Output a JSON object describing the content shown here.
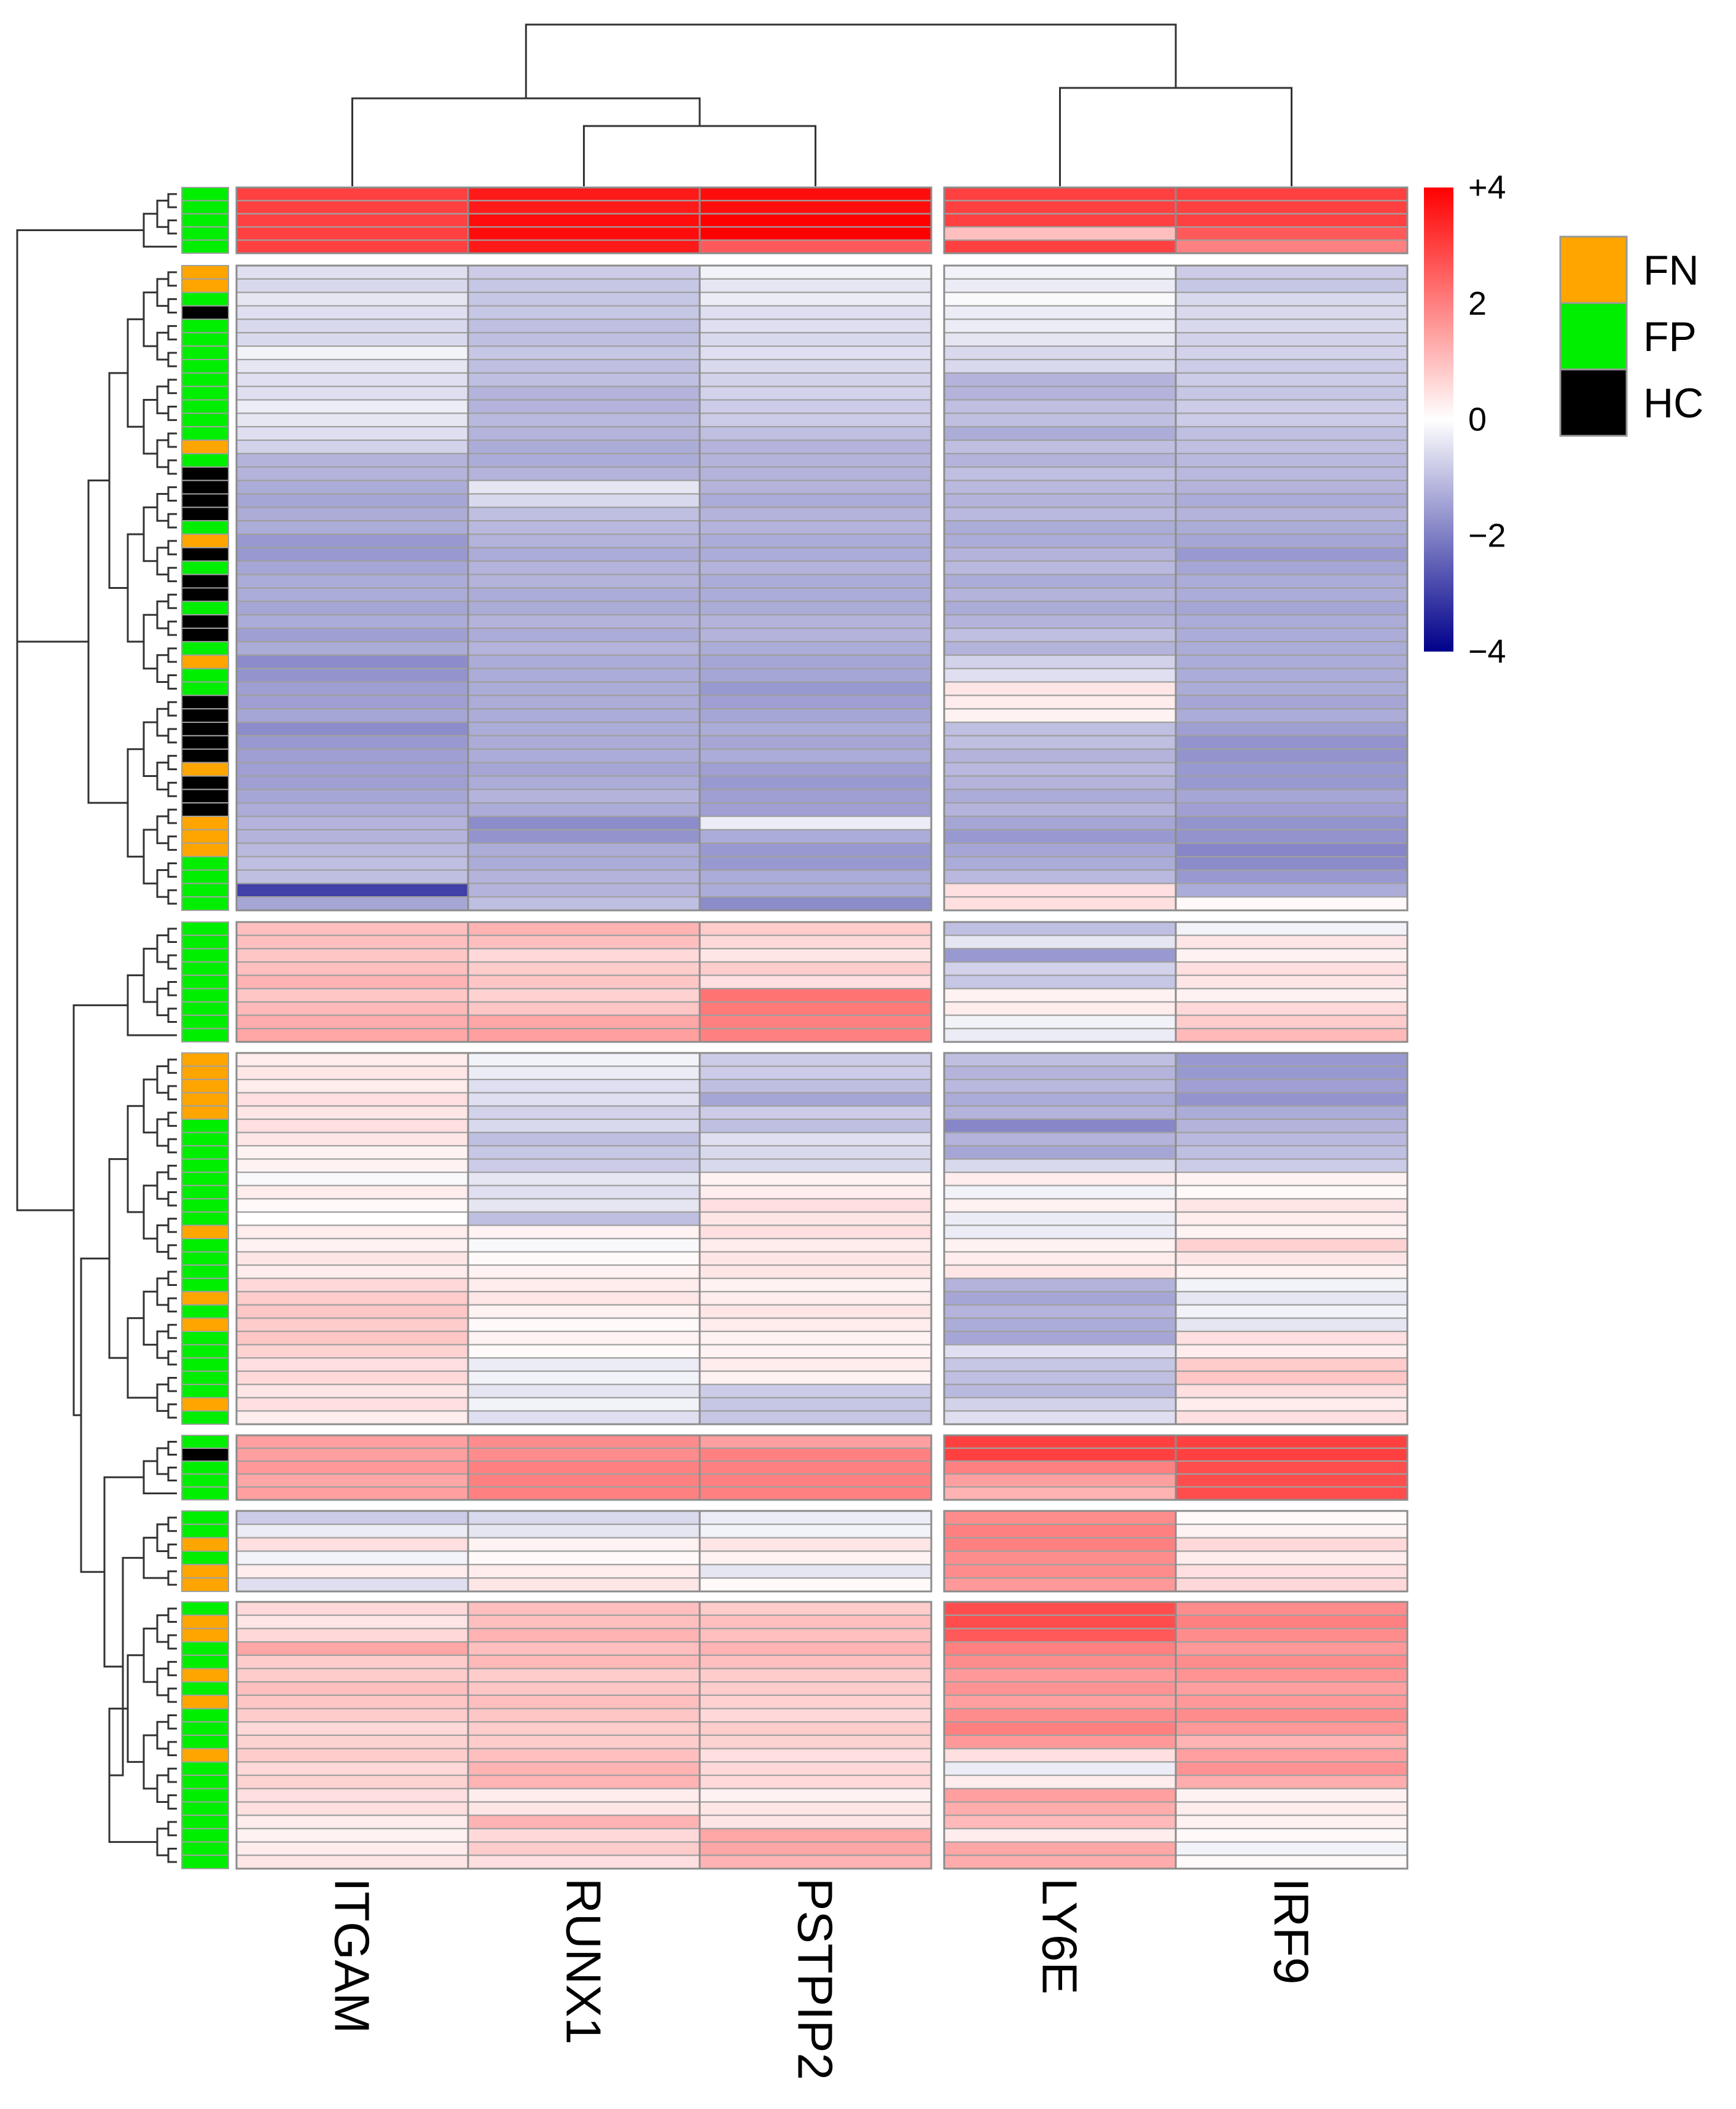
{
  "chart_data": {
    "type": "heatmap",
    "columns": [
      "ITGAM",
      "RUNX1",
      "PSTPIP2",
      "LY6E",
      "IRF9"
    ],
    "color_scale": {
      "min": -4,
      "max": 4,
      "low_color": "#00008b",
      "mid_color": "#ffffff",
      "high_color": "#ff0000",
      "ticks": [
        {
          "value": 4,
          "label": "+4"
        },
        {
          "value": 2,
          "label": "2"
        },
        {
          "value": 0,
          "label": "0"
        },
        {
          "value": -2,
          "label": "−2"
        },
        {
          "value": -4,
          "label": "−4"
        }
      ]
    },
    "legend": {
      "placement": "top-right",
      "items": [
        {
          "label": "FN",
          "color": "#ffa500"
        },
        {
          "label": "FP",
          "color": "#00ee00"
        },
        {
          "label": "HC",
          "color": "#000000"
        }
      ]
    },
    "row_dendrogram": true,
    "column_dendrogram": true,
    "row_groups": [
      {
        "annotations": [
          "FP",
          "FP",
          "FP",
          "FP",
          "FP"
        ],
        "values": [
          [
            3.0,
            3.6,
            3.8,
            3.0,
            3.0
          ],
          [
            3.0,
            3.6,
            3.8,
            3.0,
            3.0
          ],
          [
            3.0,
            3.8,
            4.0,
            3.0,
            3.0
          ],
          [
            3.0,
            3.8,
            4.0,
            1.0,
            2.6
          ],
          [
            3.0,
            3.6,
            2.6,
            3.0,
            2.0
          ]
        ]
      },
      {
        "annotations": [
          "FN",
          "FN",
          "FP",
          "HC",
          "FP",
          "FP",
          "FP",
          "FP",
          "FP",
          "FP",
          "FP",
          "FP",
          "FP",
          "FN",
          "FP",
          "HC",
          "HC",
          "HC",
          "HC",
          "FP",
          "FN",
          "HC",
          "FP",
          "HC",
          "HC",
          "FP",
          "HC",
          "HC",
          "FP",
          "FN",
          "FP",
          "FP",
          "HC",
          "HC",
          "HC",
          "HC",
          "HC",
          "FN",
          "HC",
          "HC",
          "HC",
          "FN",
          "FN",
          "FN",
          "FP",
          "FP",
          "FP",
          "FP"
        ],
        "values": [
          [
            -0.5,
            -0.8,
            -0.2,
            -0.2,
            -0.8
          ],
          [
            -0.6,
            -0.9,
            -0.4,
            -0.3,
            -0.9
          ],
          [
            -0.4,
            -0.9,
            -0.3,
            -0.1,
            -0.6
          ],
          [
            -0.5,
            -0.9,
            -0.5,
            -0.3,
            -0.6
          ],
          [
            -0.6,
            -1.0,
            -0.5,
            -0.3,
            -0.6
          ],
          [
            -0.6,
            -1.0,
            -0.6,
            -0.4,
            -0.7
          ],
          [
            -0.2,
            -0.9,
            -0.5,
            -0.6,
            -0.7
          ],
          [
            -0.4,
            -1.0,
            -0.6,
            -0.6,
            -0.8
          ],
          [
            -0.5,
            -1.0,
            -0.7,
            -1.2,
            -0.8
          ],
          [
            -0.5,
            -1.2,
            -0.7,
            -1.2,
            -0.9
          ],
          [
            -0.3,
            -1.2,
            -0.8,
            -1.0,
            -0.8
          ],
          [
            -0.4,
            -1.1,
            -0.8,
            -1.0,
            -0.8
          ],
          [
            -0.5,
            -1.2,
            -1.0,
            -1.3,
            -1.0
          ],
          [
            -0.7,
            -1.3,
            -1.2,
            -1.0,
            -1.0
          ],
          [
            -1.2,
            -1.3,
            -1.2,
            -1.2,
            -1.1
          ],
          [
            -1.2,
            -1.2,
            -1.2,
            -1.0,
            -1.1
          ],
          [
            -1.3,
            -0.4,
            -1.2,
            -1.1,
            -1.2
          ],
          [
            -1.4,
            -0.6,
            -1.3,
            -1.2,
            -1.3
          ],
          [
            -1.3,
            -1.0,
            -1.2,
            -1.1,
            -1.2
          ],
          [
            -1.3,
            -1.1,
            -1.2,
            -1.3,
            -1.3
          ],
          [
            -1.6,
            -1.2,
            -1.3,
            -1.3,
            -1.4
          ],
          [
            -1.6,
            -1.3,
            -1.3,
            -1.2,
            -1.6
          ],
          [
            -1.4,
            -1.2,
            -1.2,
            -1.1,
            -1.4
          ],
          [
            -1.3,
            -1.2,
            -1.3,
            -1.3,
            -1.3
          ],
          [
            -1.3,
            -1.3,
            -1.3,
            -1.2,
            -1.3
          ],
          [
            -1.4,
            -1.3,
            -1.3,
            -1.3,
            -1.4
          ],
          [
            -1.3,
            -1.2,
            -1.2,
            -1.2,
            -1.3
          ],
          [
            -1.5,
            -1.3,
            -1.2,
            -1.0,
            -1.3
          ],
          [
            -1.3,
            -1.2,
            -1.3,
            -1.2,
            -1.3
          ],
          [
            -1.8,
            -1.3,
            -1.4,
            -0.7,
            -1.3
          ],
          [
            -1.7,
            -1.3,
            -1.4,
            -0.5,
            -1.3
          ],
          [
            -1.5,
            -1.3,
            -1.6,
            0.4,
            -1.3
          ],
          [
            -1.5,
            -1.3,
            -1.5,
            0.3,
            -1.4
          ],
          [
            -1.4,
            -1.3,
            -1.4,
            0.2,
            -1.3
          ],
          [
            -1.8,
            -1.3,
            -1.3,
            -1.0,
            -1.5
          ],
          [
            -1.6,
            -1.3,
            -1.4,
            -1.0,
            -1.7
          ],
          [
            -1.5,
            -1.3,
            -1.3,
            -1.2,
            -1.7
          ],
          [
            -1.5,
            -1.4,
            -1.5,
            -1.1,
            -1.6
          ],
          [
            -1.5,
            -1.3,
            -1.6,
            -1.2,
            -1.6
          ],
          [
            -1.4,
            -1.2,
            -1.5,
            -1.3,
            -1.4
          ],
          [
            -1.3,
            -1.3,
            -1.5,
            -1.2,
            -1.5
          ],
          [
            -1.2,
            -1.8,
            -0.3,
            -1.4,
            -1.7
          ],
          [
            -1.2,
            -1.7,
            -1.3,
            -1.6,
            -1.7
          ],
          [
            -1.1,
            -1.3,
            -1.6,
            -1.4,
            -1.9
          ],
          [
            -1.0,
            -1.3,
            -1.6,
            -1.3,
            -1.8
          ],
          [
            -1.0,
            -1.2,
            -1.3,
            -1.1,
            -1.6
          ],
          [
            -3.0,
            -1.2,
            -1.3,
            0.5,
            -1.3
          ],
          [
            -1.4,
            -1.0,
            -1.8,
            0.5,
            0.1
          ]
        ]
      },
      {
        "annotations": [
          "FP",
          "FP",
          "FP",
          "FP",
          "FP",
          "FP",
          "FP",
          "FP",
          "FP"
        ],
        "values": [
          [
            1.0,
            1.2,
            0.8,
            -1.0,
            -0.2
          ],
          [
            1.0,
            1.0,
            0.6,
            -0.4,
            0.4
          ],
          [
            0.9,
            0.6,
            0.4,
            -1.6,
            0.2
          ],
          [
            1.0,
            0.8,
            0.8,
            -0.7,
            0.5
          ],
          [
            1.2,
            0.9,
            0.5,
            -0.9,
            0.4
          ],
          [
            0.9,
            0.7,
            2.2,
            0.2,
            0.2
          ],
          [
            1.1,
            0.9,
            2.1,
            0.3,
            0.6
          ],
          [
            1.3,
            1.4,
            2.0,
            -0.2,
            0.8
          ],
          [
            1.4,
            1.5,
            2.0,
            -0.3,
            1.1
          ]
        ]
      },
      {
        "annotations": [
          "FN",
          "FN",
          "FN",
          "FN",
          "FN",
          "FP",
          "FP",
          "FP",
          "FP",
          "FP",
          "FP",
          "FP",
          "FP",
          "FN",
          "FP",
          "FP",
          "FP",
          "FP",
          "FN",
          "FP",
          "FN",
          "FP",
          "FP",
          "FP",
          "FP",
          "FP",
          "FN",
          "FP"
        ],
        "values": [
          [
            0.3,
            -0.2,
            -0.8,
            -1.0,
            -1.6
          ],
          [
            0.4,
            -0.3,
            -0.8,
            -1.2,
            -1.6
          ],
          [
            0.3,
            -0.5,
            -1.0,
            -1.1,
            -1.5
          ],
          [
            0.5,
            -0.5,
            -1.4,
            -1.3,
            -1.7
          ],
          [
            0.4,
            -0.7,
            -0.8,
            -1.2,
            -1.3
          ],
          [
            0.5,
            -0.6,
            -1.0,
            -1.9,
            -1.2
          ],
          [
            0.4,
            -1.0,
            -0.5,
            -1.2,
            -1.1
          ],
          [
            0.2,
            -0.9,
            -0.6,
            -1.4,
            -1.0
          ],
          [
            0.2,
            -0.8,
            -0.6,
            -0.6,
            -0.8
          ],
          [
            -0.1,
            -0.4,
            0.2,
            0.3,
            0.2
          ],
          [
            0.3,
            -0.5,
            0.3,
            -0.2,
            0.1
          ],
          [
            0.1,
            -0.4,
            0.5,
            0.2,
            0.4
          ],
          [
            0.0,
            -1.0,
            0.4,
            -0.3,
            0.3
          ],
          [
            0.3,
            0.2,
            0.5,
            -0.3,
            0.2
          ],
          [
            0.2,
            -0.1,
            0.3,
            0.2,
            0.7
          ],
          [
            0.4,
            0.1,
            0.4,
            0.3,
            0.4
          ],
          [
            0.3,
            0.2,
            0.4,
            0.4,
            0.2
          ],
          [
            0.6,
            0.3,
            0.2,
            -1.2,
            -0.2
          ],
          [
            0.8,
            0.4,
            0.3,
            -1.4,
            -0.4
          ],
          [
            0.9,
            0.2,
            0.4,
            -1.2,
            -0.2
          ],
          [
            0.8,
            0.1,
            0.3,
            -1.3,
            -0.4
          ],
          [
            0.9,
            0.2,
            0.2,
            -1.4,
            0.5
          ],
          [
            0.7,
            0.1,
            0.2,
            -0.5,
            0.3
          ],
          [
            0.5,
            -0.3,
            0.3,
            -0.9,
            0.8
          ],
          [
            0.6,
            -0.2,
            0.2,
            -1.0,
            0.9
          ],
          [
            0.4,
            -0.4,
            -0.8,
            -1.1,
            0.5
          ],
          [
            0.5,
            -0.2,
            -0.9,
            -0.7,
            0.3
          ],
          [
            0.3,
            -0.5,
            -0.9,
            -0.5,
            0.5
          ]
        ]
      },
      {
        "annotations": [
          "FP",
          "HC",
          "FP",
          "FP",
          "FP"
        ],
        "values": [
          [
            1.5,
            1.8,
            1.5,
            3.0,
            3.0
          ],
          [
            1.5,
            1.8,
            2.0,
            3.0,
            3.0
          ],
          [
            1.6,
            2.0,
            2.0,
            2.0,
            2.8
          ],
          [
            1.4,
            2.0,
            2.0,
            1.5,
            2.8
          ],
          [
            1.5,
            2.0,
            2.0,
            1.2,
            2.8
          ]
        ]
      },
      {
        "annotations": [
          "FP",
          "FP",
          "FN",
          "FP",
          "FN",
          "FN"
        ],
        "values": [
          [
            -0.8,
            -0.6,
            -0.3,
            1.8,
            0.1
          ],
          [
            -0.3,
            -0.4,
            -0.2,
            2.0,
            0.2
          ],
          [
            0.5,
            0.2,
            0.4,
            2.0,
            0.6
          ],
          [
            -0.2,
            0.1,
            0.2,
            1.8,
            0.3
          ],
          [
            0.3,
            0.3,
            -0.4,
            1.8,
            0.5
          ],
          [
            -0.5,
            0.4,
            0.1,
            1.6,
            0.6
          ]
        ]
      },
      {
        "annotations": [
          "FP",
          "FN",
          "FN",
          "FP",
          "FP",
          "FN",
          "FP",
          "FN",
          "FP",
          "FP",
          "FP",
          "FN",
          "FP",
          "FP",
          "FP",
          "FP",
          "FP",
          "FP",
          "FP",
          "FP"
        ],
        "values": [
          [
            0.6,
            1.0,
            0.8,
            2.8,
            1.8
          ],
          [
            0.4,
            1.0,
            1.0,
            2.8,
            2.0
          ],
          [
            0.6,
            1.2,
            1.0,
            2.6,
            1.8
          ],
          [
            1.4,
            1.0,
            1.2,
            2.0,
            1.6
          ],
          [
            0.8,
            1.1,
            1.0,
            1.8,
            1.8
          ],
          [
            0.8,
            0.8,
            0.8,
            1.6,
            1.7
          ],
          [
            1.0,
            0.9,
            0.8,
            1.7,
            1.5
          ],
          [
            0.9,
            1.0,
            0.7,
            1.5,
            1.6
          ],
          [
            0.8,
            0.9,
            0.6,
            1.8,
            1.8
          ],
          [
            0.6,
            0.8,
            0.8,
            2.0,
            1.6
          ],
          [
            0.7,
            0.8,
            0.7,
            1.6,
            1.2
          ],
          [
            0.8,
            1.0,
            0.5,
            0.5,
            1.5
          ],
          [
            0.6,
            1.2,
            0.6,
            -0.3,
            1.7
          ],
          [
            0.7,
            1.2,
            0.6,
            0.3,
            1.3
          ],
          [
            0.5,
            0.3,
            0.2,
            1.5,
            0.2
          ],
          [
            0.5,
            0.4,
            0.4,
            1.3,
            0.3
          ],
          [
            0.3,
            1.2,
            0.4,
            1.1,
            0.2
          ],
          [
            0.2,
            0.6,
            1.4,
            0.3,
            0.1
          ],
          [
            0.3,
            0.8,
            1.4,
            1.4,
            -0.2
          ],
          [
            0.4,
            0.5,
            1.2,
            1.3,
            0.1
          ]
        ]
      }
    ]
  }
}
